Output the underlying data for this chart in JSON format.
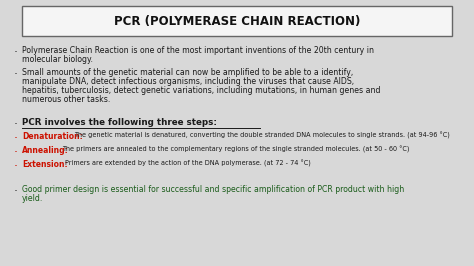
{
  "title": "PCR (POLYMERASE CHAIN REACTION)",
  "bg_color": "#d8d8d8",
  "title_box_color": "#f5f5f5",
  "title_color": "#111111",
  "dark_color": "#1a1a1a",
  "red_color": "#cc1100",
  "green_color": "#1a5c1a",
  "bullet": "·",
  "bullet1_line1": "Polymerase Chain Reaction is one of the most important inventions of the 20th century in",
  "bullet1_line2": "molecular biology.",
  "bullet2_line1": "Small amounts of the genetic material can now be amplified to be able to a identify,",
  "bullet2_line2": "manipulate DNA, detect infectious organisms, including the viruses that cause AIDS,",
  "bullet2_line3": "hepatitis, tuberculosis, detect genetic variations, including mutations, in human genes and",
  "bullet2_line4": "numerous other tasks.",
  "pcr_steps_label": "PCR involves the following three steps:",
  "denaturation_label": "Denaturation:",
  "denaturation_text": "The genetic material is denatured, converting the double stranded DNA molecules to single strands. (at 94-96 °C)",
  "annealing_label": "Annealing:",
  "annealing_text": "The primers are annealed to the complementary regions of the single stranded molecules. (at 50 - 60 °C)",
  "extension_label": "Extension:",
  "extension_text": "Primers are extended by the action of the DNA polymerase. (at 72 - 74 °C)",
  "last_line1": "Good primer design is essential for successful and specific amplification of PCR product with high",
  "last_line2": "yield."
}
